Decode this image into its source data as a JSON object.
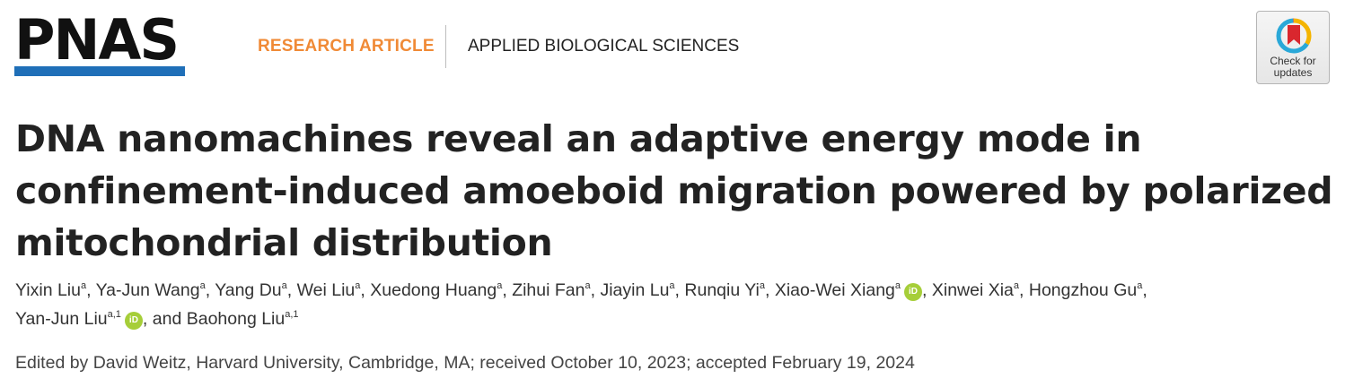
{
  "journal": {
    "logo_text": "PNAS",
    "brand_color": "#1f6fb8"
  },
  "article_type": "RESEARCH ARTICLE",
  "section": "APPLIED BIOLOGICAL SCIENCES",
  "check_for_updates": {
    "line1": "Check for",
    "line2": "updates"
  },
  "title": "DNA nanomachines reveal an adaptive energy mode in confinement-induced amoeboid migration powered by polarized mitochondrial distribution",
  "authors": [
    {
      "name": "Yixin Liu",
      "aff": "a",
      "sep": ", "
    },
    {
      "name": "Ya-Jun Wang",
      "aff": "a",
      "sep": ", "
    },
    {
      "name": "Yang Du",
      "aff": "a",
      "sep": ", "
    },
    {
      "name": "Wei Liu",
      "aff": "a",
      "sep": ", "
    },
    {
      "name": "Xuedong Huang",
      "aff": "a",
      "sep": ", "
    },
    {
      "name": "Zihui Fan",
      "aff": "a",
      "sep": ", "
    },
    {
      "name": "Jiayin Lu",
      "aff": "a",
      "sep": ", "
    },
    {
      "name": "Runqiu Yi",
      "aff": "a",
      "sep": ", "
    },
    {
      "name": "Xiao-Wei Xiang",
      "aff": "a",
      "orcid": true,
      "sep": ", "
    },
    {
      "name": "Xinwei Xia",
      "aff": "a",
      "sep": ", "
    },
    {
      "name": "Hongzhou Gu",
      "aff": "a",
      "sep": ", "
    },
    {
      "name": "Yan-Jun Liu",
      "aff": "a,1",
      "orcid": true,
      "sep": ", and "
    },
    {
      "name": "Baohong Liu",
      "aff": "a,1",
      "sep": ""
    }
  ],
  "orcid_label": "iD",
  "edited_by": "Edited by David Weitz, Harvard University, Cambridge, MA; received October 10, 2023; accepted February 19, 2024",
  "colors": {
    "accent": "#f08a36",
    "orcid": "#a6ce39"
  }
}
